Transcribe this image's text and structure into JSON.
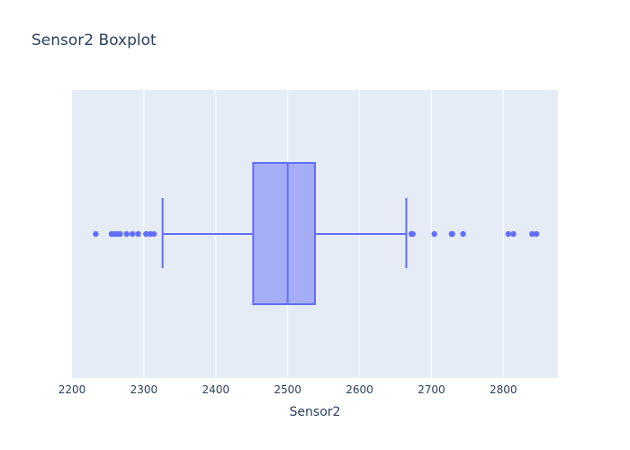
{
  "chart_data": {
    "type": "box",
    "title": "Sensor2 Boxplot",
    "xlabel": "Sensor2",
    "ylabel": "",
    "orientation": "horizontal",
    "xlim": [
      2200,
      2876
    ],
    "x_ticks": [
      2200,
      2300,
      2400,
      2500,
      2600,
      2700,
      2800
    ],
    "x_tick_labels": [
      "2200",
      "2300",
      "2400",
      "2500",
      "2600",
      "2700",
      "2800"
    ],
    "grid": true,
    "series": [
      {
        "lower_fence": 2326,
        "q1": 2452,
        "median": 2500,
        "q3": 2538,
        "upper_fence": 2665,
        "outliers": [
          2233,
          2255,
          2259,
          2263,
          2267,
          2276,
          2284,
          2292,
          2303,
          2309,
          2314,
          2672,
          2674,
          2704,
          2728,
          2729,
          2744,
          2807,
          2814,
          2840,
          2846
        ]
      }
    ],
    "colors": {
      "plot_background": "#e5ecf6",
      "grid": "#ffffff",
      "box_fill": "#a5adf7",
      "box_line": "#636efa",
      "text": "#2a3f5f"
    }
  }
}
